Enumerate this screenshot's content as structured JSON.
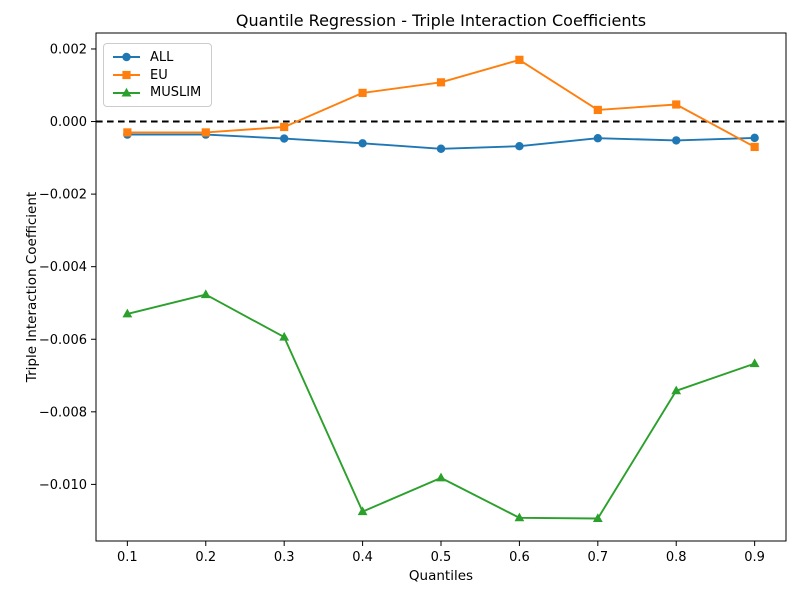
{
  "chart_data": {
    "type": "line",
    "title": "Quantile Regression - Triple Interaction Coefficients",
    "xlabel": "Quantiles",
    "ylabel": "Triple Interaction Coefficient",
    "x": [
      0.1,
      0.2,
      0.3,
      0.4,
      0.5,
      0.6,
      0.7,
      0.8,
      0.9
    ],
    "series": [
      {
        "name": "ALL",
        "color": "#1f77b4",
        "marker": "circle",
        "values": [
          -0.00036,
          -0.00036,
          -0.00047,
          -0.0006,
          -0.00075,
          -0.00068,
          -0.00046,
          -0.00052,
          -0.00045
        ]
      },
      {
        "name": "EU",
        "color": "#ff7f0e",
        "marker": "square",
        "values": [
          -0.0003,
          -0.0003,
          -0.00015,
          0.00079,
          0.00108,
          0.0017,
          0.00032,
          0.00047,
          -0.0007
        ]
      },
      {
        "name": "MUSLIM",
        "color": "#2ca02c",
        "marker": "triangle-up",
        "values": [
          -0.0053,
          -0.00477,
          -0.00594,
          -0.01075,
          -0.00982,
          -0.01092,
          -0.01094,
          -0.00742,
          -0.00667
        ]
      }
    ],
    "reference_line": {
      "y": 0,
      "style": "dashed",
      "color": "#000000"
    },
    "xlim": [
      0.06,
      0.94
    ],
    "ylim": [
      -0.01156,
      0.00244
    ],
    "x_ticks": [
      {
        "value": 0.1,
        "label": "0.1"
      },
      {
        "value": 0.2,
        "label": "0.2"
      },
      {
        "value": 0.3,
        "label": "0.3"
      },
      {
        "value": 0.4,
        "label": "0.4"
      },
      {
        "value": 0.5,
        "label": "0.5"
      },
      {
        "value": 0.6,
        "label": "0.6"
      },
      {
        "value": 0.7,
        "label": "0.7"
      },
      {
        "value": 0.8,
        "label": "0.8"
      },
      {
        "value": 0.9,
        "label": "0.9"
      }
    ],
    "y_ticks": [
      {
        "value": 0.002,
        "label": "0.002"
      },
      {
        "value": 0.0,
        "label": "0.000"
      },
      {
        "value": -0.002,
        "label": "−0.002"
      },
      {
        "value": -0.004,
        "label": "−0.004"
      },
      {
        "value": -0.006,
        "label": "−0.006"
      },
      {
        "value": -0.008,
        "label": "−0.008"
      },
      {
        "value": -0.01,
        "label": "−0.010"
      }
    ],
    "legend": {
      "position": "upper left",
      "entries": [
        "ALL",
        "EU",
        "MUSLIM"
      ]
    },
    "grid": false
  }
}
